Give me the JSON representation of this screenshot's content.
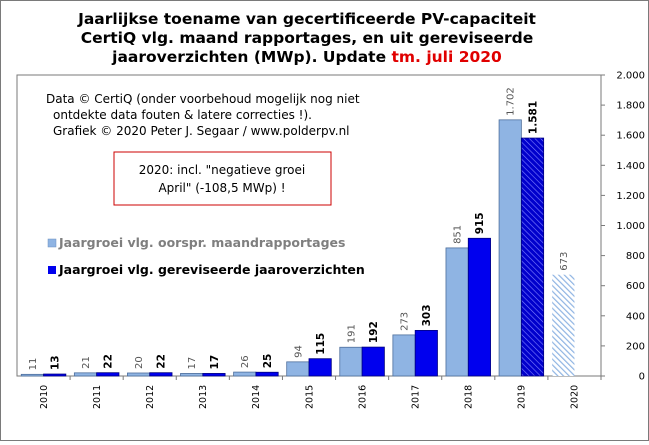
{
  "title": {
    "line1": "Jaarlijkse toename van gecertificeerde PV-capaciteit",
    "line2": "CertiQ vlg. maand rapportages, en uit gereviseerde",
    "line3_main": "jaaroverzichten (MWp). Update",
    "line3_highlight": "tm. juli 2020"
  },
  "credits": {
    "line1": "Data © CertiQ (onder voorbehoud mogelijk nog niet",
    "line2": "ontdekte data fouten & latere correcties !).",
    "line3": "Grafiek © 2020 Peter J. Segaar / www.polderpv.nl"
  },
  "note_box": {
    "line1": "2020: incl. \"negatieve groei",
    "line2": "April\" (-108,5 MWp) !"
  },
  "colors": {
    "monthly": "#8fb4e3",
    "revised": "#0000ee",
    "note_border": "#cc0000",
    "legend_monthly_text": "#7f7f7f",
    "highlight": "#e00000"
  },
  "chart_data": {
    "type": "bar",
    "categories": [
      "2010",
      "2011",
      "2012",
      "2013",
      "2014",
      "2015",
      "2016",
      "2017",
      "2018",
      "2019",
      "2020"
    ],
    "series": [
      {
        "name": "Jaargroei vlg. oorspr. maandrapportages",
        "values": [
          11,
          21,
          20,
          17,
          26,
          94,
          191,
          273,
          851,
          1702,
          673
        ],
        "labels": [
          "11",
          "21",
          "20",
          "17",
          "26",
          "94",
          "191",
          "273",
          "851",
          "1.702",
          "673"
        ],
        "hatched_categories": [
          "2020"
        ]
      },
      {
        "name": "Jaargroei vlg. gereviseerde jaaroverzichten",
        "values": [
          13,
          22,
          22,
          17,
          25,
          115,
          192,
          303,
          915,
          1581,
          null
        ],
        "labels": [
          "13",
          "22",
          "22",
          "17",
          "25",
          "115",
          "192",
          "303",
          "915",
          "1.581",
          ""
        ],
        "hatched_categories": [
          "2019"
        ]
      }
    ],
    "ylim": [
      0,
      2000
    ],
    "yticks": [
      0,
      200,
      400,
      600,
      800,
      1000,
      1200,
      1400,
      1600,
      1800,
      2000
    ],
    "ytick_labels": [
      "0",
      "200",
      "400",
      "600",
      "800",
      "1.000",
      "1.200",
      "1.400",
      "1.600",
      "1.800",
      "2.000"
    ],
    "y_axis_side": "right",
    "grid": false,
    "legend_position": "left-middle"
  }
}
